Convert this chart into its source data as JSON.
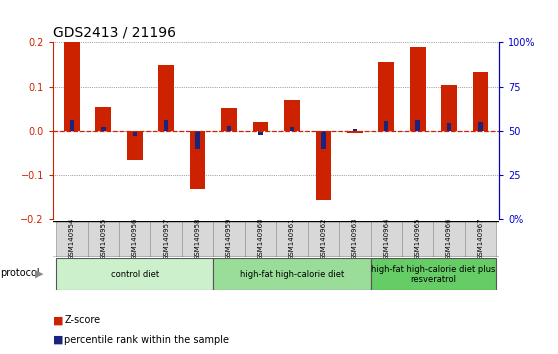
{
  "title": "GDS2413 / 21196",
  "samples": [
    "GSM140954",
    "GSM140955",
    "GSM140956",
    "GSM140957",
    "GSM140958",
    "GSM140959",
    "GSM140960",
    "GSM140961",
    "GSM140962",
    "GSM140963",
    "GSM140964",
    "GSM140965",
    "GSM140966",
    "GSM140967"
  ],
  "zscore": [
    0.2,
    0.055,
    -0.065,
    0.15,
    -0.13,
    0.053,
    0.02,
    0.07,
    -0.155,
    -0.005,
    0.157,
    0.19,
    0.105,
    0.133
  ],
  "pct_rank": [
    0.025,
    0.01,
    -0.012,
    0.025,
    -0.04,
    0.012,
    -0.008,
    0.01,
    -0.04,
    0.005,
    0.022,
    0.025,
    0.018,
    0.02
  ],
  "groups": [
    {
      "label": "control diet",
      "start": 0,
      "end": 5,
      "color": "#ccf0cc"
    },
    {
      "label": "high-fat high-calorie diet",
      "start": 5,
      "end": 10,
      "color": "#99dd99"
    },
    {
      "label": "high-fat high-calorie diet plus\nresveratrol",
      "start": 10,
      "end": 14,
      "color": "#66cc66"
    }
  ],
  "ylim": [
    -0.2,
    0.2
  ],
  "y2lim": [
    0,
    100
  ],
  "yticks": [
    -0.2,
    -0.1,
    0.0,
    0.1,
    0.2
  ],
  "y2ticks": [
    0,
    25,
    50,
    75,
    100
  ],
  "y2ticklabels": [
    "0",
    "25",
    "50",
    "75",
    "100%"
  ],
  "bar_color": "#cc2200",
  "pct_color": "#1a237e",
  "zero_line_color": "#cc2200",
  "grid_color": "#555555",
  "bg_color": "#ffffff",
  "title_fontsize": 10,
  "tick_fontsize": 7,
  "bar_width": 0.5
}
